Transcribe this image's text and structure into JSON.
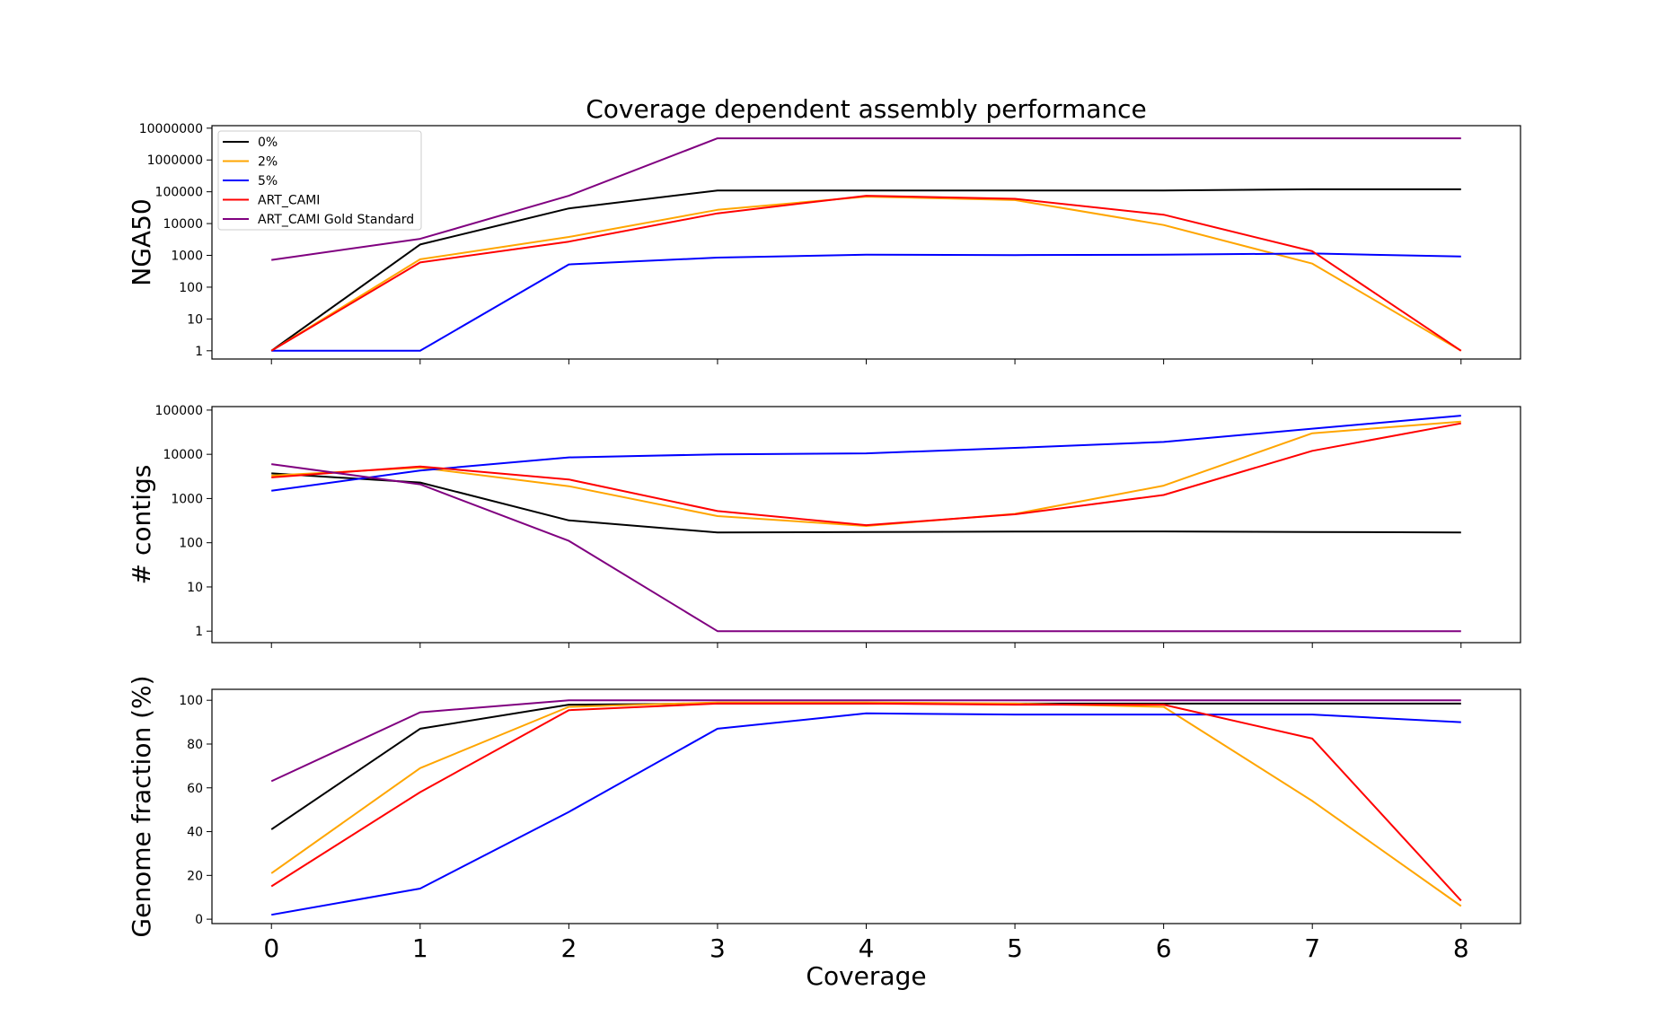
{
  "chart_data": {
    "type": "line",
    "title": "Coverage dependent assembly performance",
    "xlabel": "Coverage",
    "x": [
      0,
      1,
      2,
      3,
      4,
      5,
      6,
      7,
      8
    ],
    "x_tick_labels": [
      "0",
      "1",
      "2",
      "3",
      "4",
      "5",
      "6",
      "7",
      "8"
    ],
    "xlim": [
      -0.4,
      8.4
    ],
    "legend": {
      "placement": "upper-left (top panel)",
      "entries": [
        "0%",
        "2%",
        "5%",
        "ART_CAMI",
        "ART_CAMI Gold Standard"
      ]
    },
    "series_colors": {
      "0%": "#000000",
      "2%": "#FFA500",
      "5%": "#0000FF",
      "ART_CAMI": "#FF0000",
      "ART_CAMI Gold Standard": "#800080"
    },
    "panels": [
      {
        "ylabel": "NGA50",
        "scale": "log",
        "ylim": [
          0.55,
          12000000
        ],
        "y_ticks": [
          1,
          10,
          100,
          1000,
          10000,
          100000,
          1000000,
          10000000
        ],
        "y_tick_labels": [
          "1",
          "10",
          "100",
          "1000",
          "10000",
          "100000",
          "1000000",
          "10000000"
        ],
        "series": [
          {
            "name": "0%",
            "values": [
              1,
              2200,
              30000,
              110000,
              110000,
              110000,
              110000,
              120000,
              120000
            ]
          },
          {
            "name": "2%",
            "values": [
              1,
              750,
              3800,
              27000,
              70000,
              55000,
              9000,
              550,
              1
            ]
          },
          {
            "name": "5%",
            "values": [
              1,
              1,
              520,
              850,
              1050,
              1020,
              1050,
              1150,
              920
            ]
          },
          {
            "name": "ART_CAMI",
            "values": [
              1,
              600,
              2700,
              21000,
              75000,
              60000,
              19000,
              1350,
              1
            ]
          },
          {
            "name": "ART_CAMI Gold Standard",
            "values": [
              720,
              3300,
              75000,
              4800000,
              4800000,
              4800000,
              4800000,
              4800000,
              4800000
            ]
          }
        ]
      },
      {
        "ylabel": "# contigs",
        "scale": "log",
        "ylim": [
          0.55,
          120000
        ],
        "y_ticks": [
          1,
          10,
          100,
          1000,
          10000,
          100000
        ],
        "y_tick_labels": [
          "1",
          "10",
          "100",
          "1000",
          "10000",
          "100000"
        ],
        "series": [
          {
            "name": "0%",
            "values": [
              3700,
              2300,
              320,
              170,
              175,
              178,
              180,
              175,
              170
            ]
          },
          {
            "name": "2%",
            "values": [
              3300,
              5000,
              1900,
              400,
              240,
              450,
              1950,
              30000,
              55000
            ]
          },
          {
            "name": "5%",
            "values": [
              1500,
              4300,
              8500,
              10000,
              10500,
              14000,
              19000,
              38000,
              75000
            ]
          },
          {
            "name": "ART_CAMI",
            "values": [
              3000,
              5300,
              2700,
              520,
              250,
              440,
              1200,
              12000,
              50000
            ]
          },
          {
            "name": "ART_CAMI Gold Standard",
            "values": [
              6000,
              2100,
              110,
              1,
              1,
              1,
              1,
              1,
              1
            ]
          }
        ]
      },
      {
        "ylabel": "Genome fraction (%)",
        "scale": "linear",
        "ylim": [
          -2,
          105
        ],
        "y_ticks": [
          0,
          20,
          40,
          60,
          80,
          100
        ],
        "y_tick_labels": [
          "0",
          "20",
          "40",
          "60",
          "80",
          "100"
        ],
        "series": [
          {
            "name": "0%",
            "values": [
              41,
              87,
              98,
              98.5,
              98.5,
              98.5,
              98.5,
              98.5,
              98.5
            ]
          },
          {
            "name": "2%",
            "values": [
              21,
              69,
              97,
              99,
              99,
              98.5,
              97,
              54,
              6
            ]
          },
          {
            "name": "5%",
            "values": [
              2,
              14,
              49,
              87,
              94,
              93.5,
              93.5,
              93.5,
              90
            ]
          },
          {
            "name": "ART_CAMI",
            "values": [
              15,
              58,
              95.5,
              98.5,
              98.5,
              98,
              98,
              82.5,
              8.5
            ]
          },
          {
            "name": "ART_CAMI Gold Standard",
            "values": [
              63,
              94.5,
              100,
              100,
              100,
              100,
              100,
              100,
              100
            ]
          }
        ]
      }
    ]
  }
}
